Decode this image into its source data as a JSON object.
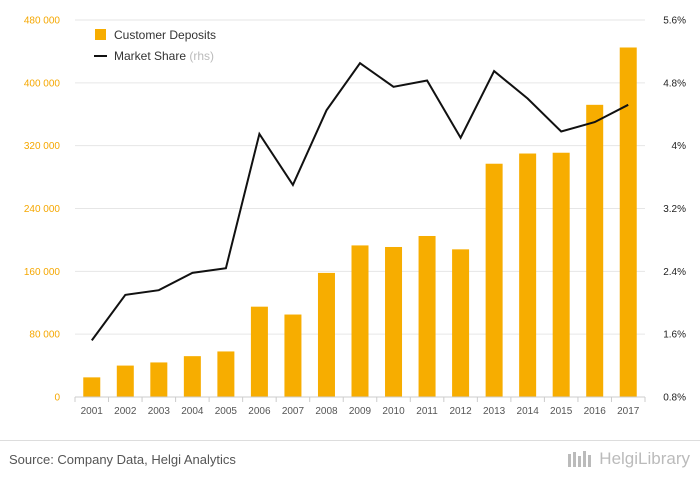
{
  "chart_data": {
    "type": "bar",
    "categories": [
      "2001",
      "2002",
      "2003",
      "2004",
      "2005",
      "2006",
      "2007",
      "2008",
      "2009",
      "2010",
      "2011",
      "2012",
      "2013",
      "2014",
      "2015",
      "2016",
      "2017"
    ],
    "series": [
      {
        "name": "Customer Deposits",
        "type": "bar",
        "axis": "left",
        "color": "#f7ad00",
        "values": [
          25000,
          40000,
          44000,
          52000,
          58000,
          115000,
          105000,
          158000,
          193000,
          191000,
          205000,
          188000,
          297000,
          310000,
          311000,
          372000,
          445000
        ]
      },
      {
        "name": "Market Share",
        "name_suffix": "(rhs)",
        "type": "line",
        "axis": "right",
        "color": "#111111",
        "values": [
          1.52,
          2.1,
          2.16,
          2.38,
          2.44,
          4.15,
          3.5,
          4.45,
          5.05,
          4.75,
          4.83,
          4.1,
          4.95,
          4.6,
          4.18,
          4.3,
          4.52
        ]
      }
    ],
    "y_left": {
      "ylim": [
        0,
        480000
      ],
      "ticks": [
        0,
        80000,
        160000,
        240000,
        320000,
        400000,
        480000
      ],
      "tick_labels": [
        "0",
        "80 000",
        "160 000",
        "240 000",
        "320 000",
        "400 000",
        "480 000"
      ]
    },
    "y_right": {
      "ylim": [
        0.8,
        5.6
      ],
      "ticks": [
        0.8,
        1.6,
        2.4,
        3.2,
        4.0,
        4.8,
        5.6
      ],
      "tick_labels": [
        "0.8%",
        "1.6%",
        "2.4%",
        "3.2%",
        "4%",
        "4.8%",
        "5.6%"
      ]
    },
    "legend_position": "top-left",
    "grid": "horizontal"
  },
  "footer": {
    "source": "Source: Company Data, Helgi Analytics",
    "brand": "HelgiLibrary"
  }
}
